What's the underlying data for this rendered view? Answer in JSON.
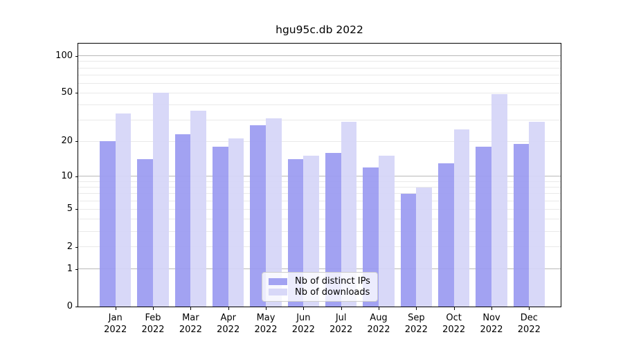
{
  "title": "hgu95c.db 2022",
  "chart_data": {
    "type": "bar",
    "title": "hgu95c.db 2022",
    "categories": [
      "Jan 2022",
      "Feb 2022",
      "Mar 2022",
      "Apr 2022",
      "May 2022",
      "Jun 2022",
      "Jul 2022",
      "Aug 2022",
      "Sep 2022",
      "Oct 2022",
      "Nov 2022",
      "Dec 2022"
    ],
    "series": [
      {
        "name": "Nb of distinct IPs",
        "color": "#9a9af1",
        "values": [
          20,
          14,
          23,
          18,
          27,
          14,
          16,
          12,
          7,
          13,
          18,
          19
        ]
      },
      {
        "name": "Nb of downloads",
        "color": "#d5d5f7",
        "values": [
          34,
          50,
          36,
          21,
          31,
          15,
          29,
          15,
          8,
          25,
          49,
          29
        ]
      }
    ],
    "xlabel": "",
    "ylabel": "",
    "yscale": "log1p",
    "ylim": [
      0,
      125.6
    ],
    "yticks": [
      0,
      1,
      2,
      5,
      10,
      20,
      50,
      100
    ],
    "minor_gridlines": [
      2,
      3,
      4,
      5,
      6,
      7,
      8,
      9,
      20,
      30,
      40,
      50,
      60,
      70,
      80,
      90
    ],
    "major_gridlines": [
      1,
      10,
      100
    ],
    "grid": true,
    "legend_position": "lower center",
    "colors": {
      "distinct_ips_bar": "#9a9af1",
      "downloads_bar": "#d5d5f7",
      "major_grid": "#b8b8b8",
      "minor_grid": "#e9e9e9",
      "spine": "#000000",
      "background": "#ffffff"
    }
  }
}
